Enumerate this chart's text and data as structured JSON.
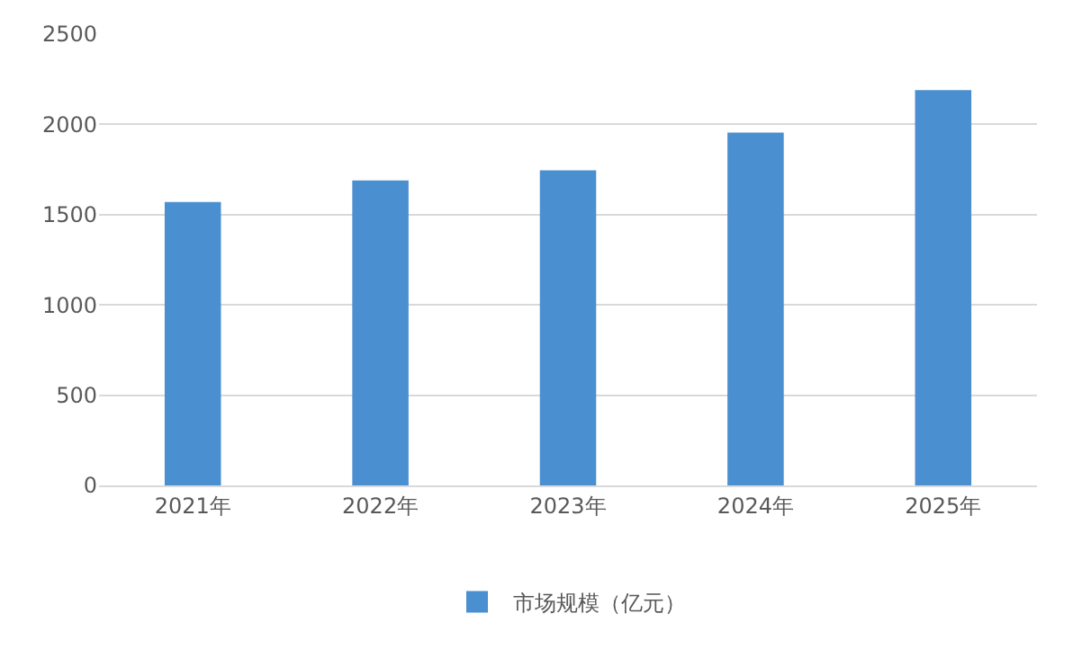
{
  "chart_data": {
    "type": "bar",
    "categories": [
      "2021年",
      "2022年",
      "2023年",
      "2024年",
      "2025年"
    ],
    "series": [
      {
        "name": "市场规模（亿元）",
        "color": "#4a8fcf",
        "values": [
          1570,
          1690,
          1745,
          1955,
          2190
        ]
      }
    ],
    "ylim": [
      0,
      2500
    ],
    "yticks": [
      0,
      500,
      1000,
      1500,
      2000,
      2500
    ],
    "grid": "y",
    "legend": "bottom"
  }
}
